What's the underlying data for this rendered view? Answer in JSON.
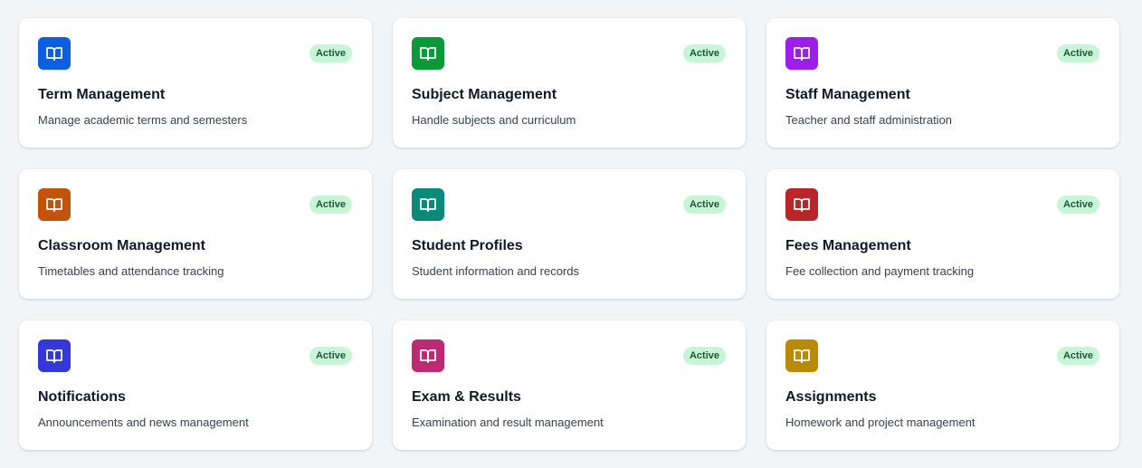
{
  "modules": [
    {
      "title": "Term Management",
      "description": "Manage academic terms and semesters",
      "status": "Active",
      "icon": "book-open-icon",
      "color": "#0b5fe0"
    },
    {
      "title": "Subject Management",
      "description": "Handle subjects and curriculum",
      "status": "Active",
      "icon": "book-open-icon",
      "color": "#0a9a3a"
    },
    {
      "title": "Staff Management",
      "description": "Teacher and staff administration",
      "status": "Active",
      "icon": "book-open-icon",
      "color": "#9b1fe8"
    },
    {
      "title": "Classroom Management",
      "description": "Timetables and attendance tracking",
      "status": "Active",
      "icon": "book-open-icon",
      "color": "#c2540a"
    },
    {
      "title": "Student Profiles",
      "description": "Student information and records",
      "status": "Active",
      "icon": "book-open-icon",
      "color": "#0b8a7a"
    },
    {
      "title": "Fees Management",
      "description": "Fee collection and payment tracking",
      "status": "Active",
      "icon": "book-open-icon",
      "color": "#b8262a"
    },
    {
      "title": "Notifications",
      "description": "Announcements and news management",
      "status": "Active",
      "icon": "book-open-icon",
      "color": "#3438d8"
    },
    {
      "title": "Exam & Results",
      "description": "Examination and result management",
      "status": "Active",
      "icon": "book-open-icon",
      "color": "#bd2a72"
    },
    {
      "title": "Assignments",
      "description": "Homework and project management",
      "status": "Active",
      "icon": "book-open-icon",
      "color": "#b88a05"
    }
  ]
}
